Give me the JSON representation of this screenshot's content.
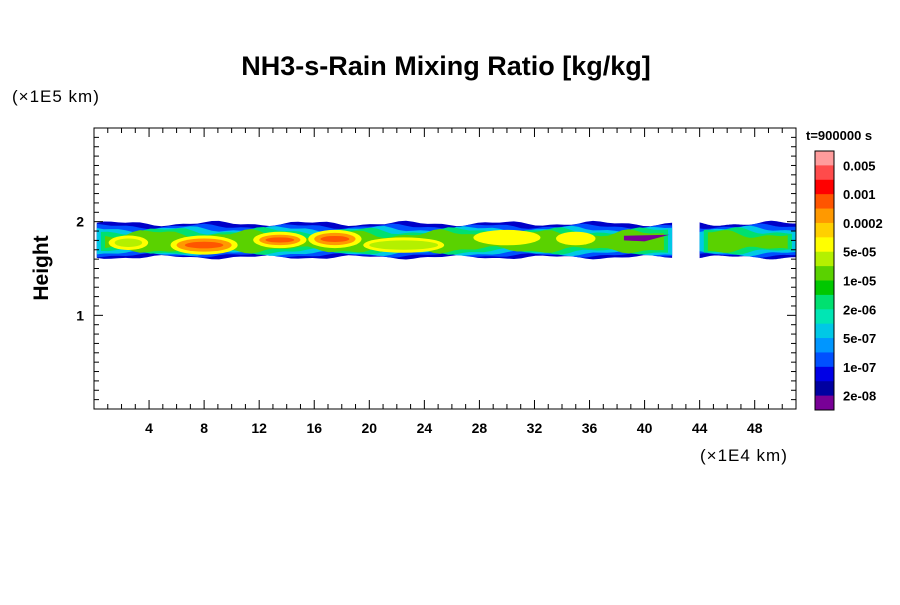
{
  "chart_data": {
    "type": "heatmap",
    "title": "NH3-s-Rain Mixing Ratio [kg/kg]",
    "ylabel": "Height",
    "xlabel": "",
    "x_unit_label": "(×1E4 km)",
    "y_unit_label": "(×1E5 km)",
    "time_label": "t=900000 s",
    "xlim": [
      0,
      51
    ],
    "ylim": [
      0,
      3
    ],
    "x_ticks": [
      4,
      8,
      12,
      16,
      20,
      24,
      28,
      32,
      36,
      40,
      44,
      48
    ],
    "y_ticks": [
      1,
      2
    ],
    "colorbar": {
      "labels": [
        "0.005",
        "0.001",
        "0.0002",
        "5e-05",
        "1e-05",
        "2e-06",
        "5e-07",
        "1e-07",
        "2e-08"
      ],
      "colors_top_to_bottom": [
        "#ff9c9c",
        "#ff4b4b",
        "#ff0000",
        "#ff5500",
        "#ff9900",
        "#ffd000",
        "#ffff00",
        "#b4f000",
        "#5ad200",
        "#00c800",
        "#00e070",
        "#00e6b4",
        "#00c8e6",
        "#0096ff",
        "#0050ff",
        "#0000e6",
        "#0000a0",
        "#780096"
      ]
    },
    "band": {
      "x_range": [
        0,
        51
      ],
      "height_range": [
        1.6,
        1.98
      ],
      "gap_x": [
        42,
        44
      ],
      "description_levels": [
        {
          "x": [
            1.5,
            3.5
          ],
          "y": [
            1.73,
            1.82
          ],
          "level": "1e-05"
        },
        {
          "x": [
            6,
            10
          ],
          "y": [
            1.68,
            1.82
          ],
          "level": "0.0002"
        },
        {
          "x": [
            12,
            15
          ],
          "y": [
            1.75,
            1.86
          ],
          "level": "0.0002"
        },
        {
          "x": [
            16,
            19
          ],
          "y": [
            1.75,
            1.88
          ],
          "level": "0.0002"
        },
        {
          "x": [
            20,
            25
          ],
          "y": [
            1.7,
            1.8
          ],
          "level": "1e-05"
        },
        {
          "x": [
            28,
            32
          ],
          "y": [
            1.78,
            1.88
          ],
          "level": "5e-05"
        },
        {
          "x": [
            34,
            36
          ],
          "y": [
            1.78,
            1.86
          ],
          "level": "5e-05"
        }
      ]
    }
  }
}
